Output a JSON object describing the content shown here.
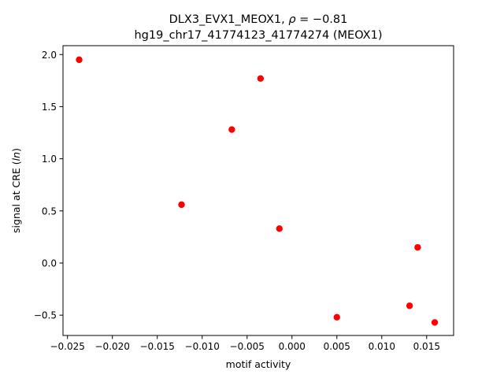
{
  "chart_data": {
    "type": "scatter",
    "title_line1_prefix": "DLX3_EVX1_MEOX1, ",
    "title_line1_symbol": "ρ",
    "title_line1_value": " = −0.81",
    "title_line2": "hg19_chr17_41774123_41774274 (MEOX1)",
    "xlabel": "motif activity",
    "ylabel_prefix": "signal at CRE (",
    "ylabel_symbol": "ln",
    "ylabel_suffix": ")",
    "xlim": [
      -0.0255,
      0.018
    ],
    "ylim": [
      -0.695,
      2.085
    ],
    "xticks": [
      {
        "value": -0.025,
        "label": "−0.025"
      },
      {
        "value": -0.02,
        "label": "−0.020"
      },
      {
        "value": -0.015,
        "label": "−0.015"
      },
      {
        "value": -0.01,
        "label": "−0.010"
      },
      {
        "value": -0.005,
        "label": "−0.005"
      },
      {
        "value": 0.0,
        "label": "0.000"
      },
      {
        "value": 0.005,
        "label": "0.005"
      },
      {
        "value": 0.01,
        "label": "0.010"
      },
      {
        "value": 0.015,
        "label": "0.015"
      }
    ],
    "yticks": [
      {
        "value": -0.5,
        "label": "−0.5"
      },
      {
        "value": 0.0,
        "label": "0.0"
      },
      {
        "value": 0.5,
        "label": "0.5"
      },
      {
        "value": 1.0,
        "label": "1.0"
      },
      {
        "value": 1.5,
        "label": "1.5"
      },
      {
        "value": 2.0,
        "label": "2.0"
      }
    ],
    "points": [
      {
        "x": -0.0237,
        "y": 1.95
      },
      {
        "x": -0.0035,
        "y": 1.77
      },
      {
        "x": -0.0067,
        "y": 1.28
      },
      {
        "x": -0.0123,
        "y": 0.56
      },
      {
        "x": -0.0014,
        "y": 0.33
      },
      {
        "x": 0.014,
        "y": 0.15
      },
      {
        "x": 0.0131,
        "y": -0.41
      },
      {
        "x": 0.005,
        "y": -0.52
      },
      {
        "x": 0.0159,
        "y": -0.57
      }
    ],
    "point_color": "#ff0000",
    "grid": false,
    "legend": "none"
  }
}
